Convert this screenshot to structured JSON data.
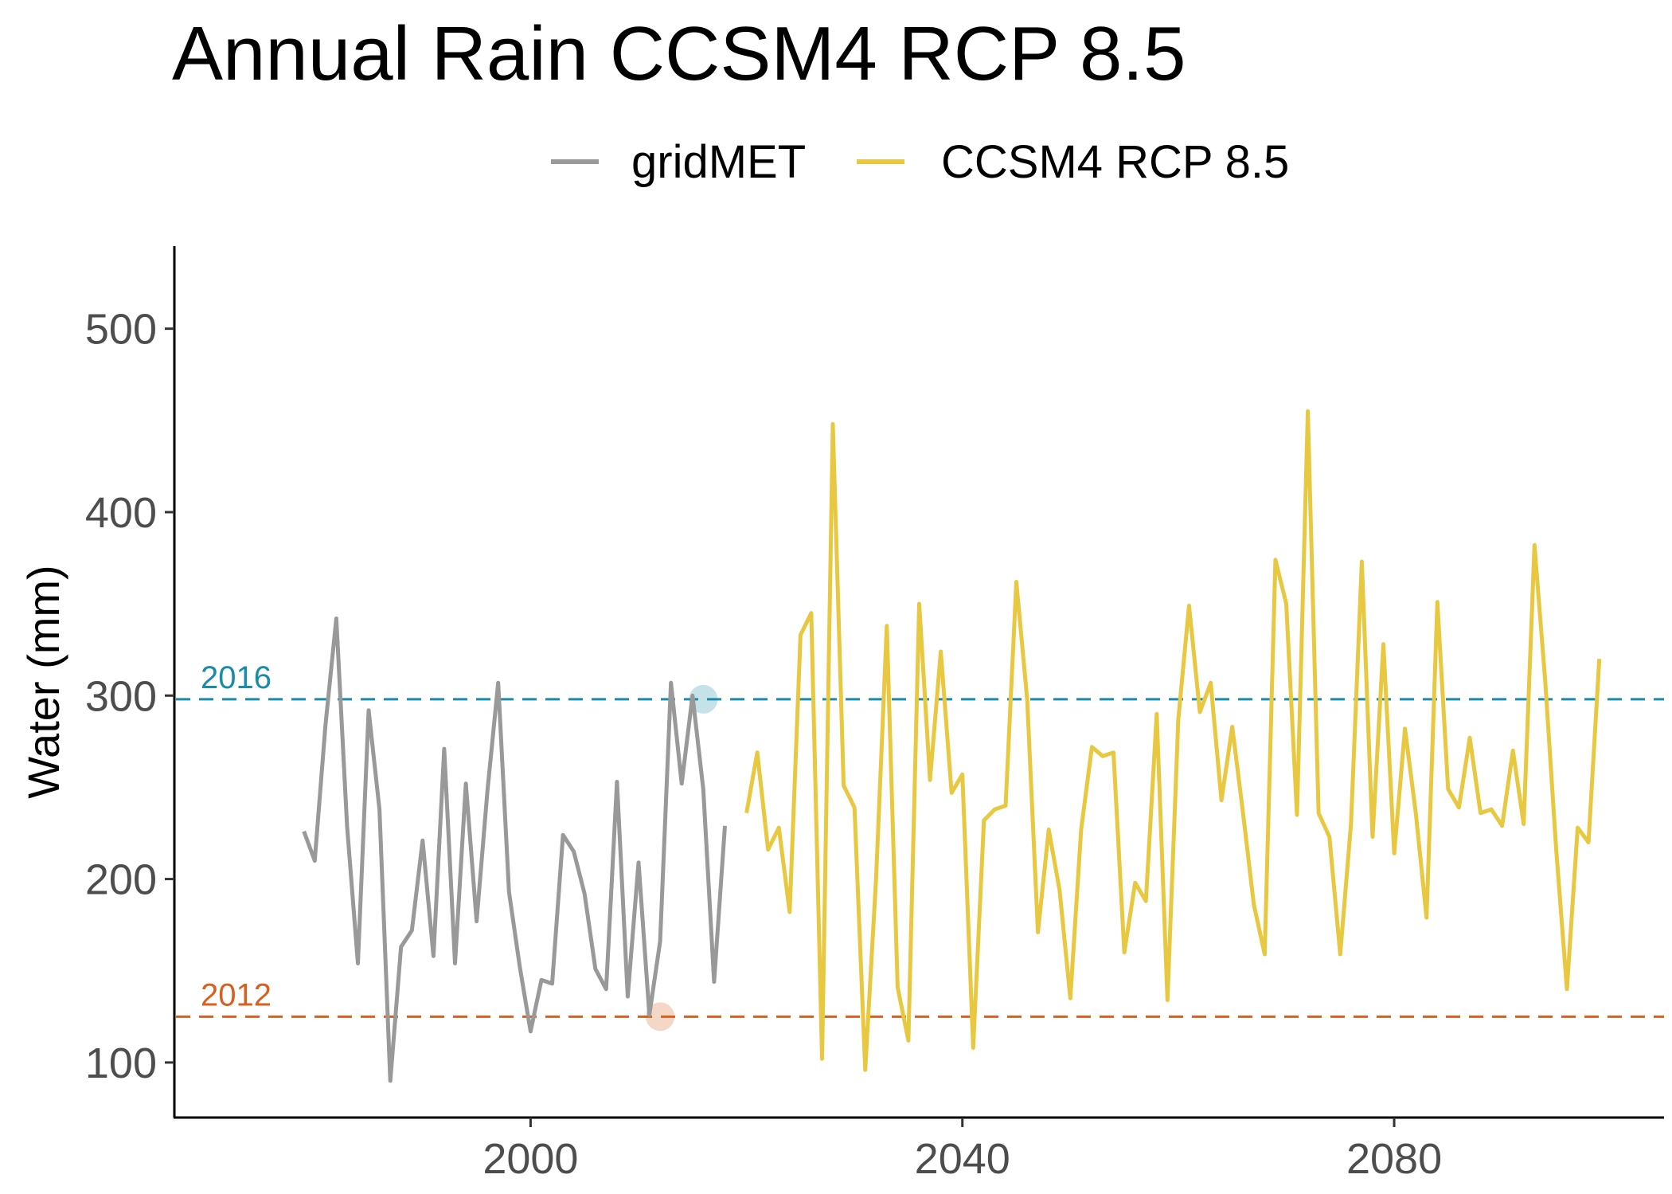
{
  "chart_data": {
    "type": "line",
    "title": "Annual Rain CCSM4 RCP 8.5",
    "xlabel": "",
    "ylabel": "Water (mm)",
    "xlim": [
      1967,
      2105
    ],
    "ylim": [
      70,
      545
    ],
    "x_ticks": [
      2000,
      2040,
      2080
    ],
    "y_ticks": [
      100,
      200,
      300,
      400,
      500
    ],
    "grid": false,
    "legend_position": "top",
    "series": [
      {
        "name": "gridMET",
        "color": "#999999",
        "x": [
          1979,
          1980,
          1981,
          1982,
          1983,
          1984,
          1985,
          1986,
          1987,
          1988,
          1989,
          1990,
          1991,
          1992,
          1993,
          1994,
          1995,
          1996,
          1997,
          1998,
          1999,
          2000,
          2001,
          2002,
          2003,
          2004,
          2005,
          2006,
          2007,
          2008,
          2009,
          2010,
          2011,
          2012,
          2013,
          2014,
          2015,
          2016,
          2017,
          2018,
          2019
        ],
        "y": [
          226,
          210,
          284,
          342,
          229,
          154,
          292,
          238,
          90,
          163,
          172,
          221,
          158,
          271,
          154,
          252,
          177,
          248,
          307,
          193,
          152,
          117,
          145,
          143,
          224,
          215,
          192,
          151,
          140,
          253,
          136,
          209,
          126,
          166,
          307,
          252,
          300,
          249,
          144,
          229,
          null
        ]
      },
      {
        "name": "CCSM4 RCP 8.5",
        "color": "#e8c840",
        "x": [
          2020,
          2021,
          2022,
          2023,
          2024,
          2025,
          2026,
          2027,
          2028,
          2029,
          2030,
          2031,
          2032,
          2033,
          2034,
          2035,
          2036,
          2037,
          2038,
          2039,
          2040,
          2041,
          2042,
          2043,
          2044,
          2045,
          2046,
          2047,
          2048,
          2049,
          2050,
          2051,
          2052,
          2053,
          2054,
          2055,
          2056,
          2057,
          2058,
          2059,
          2060,
          2061,
          2062,
          2063,
          2064,
          2065,
          2066,
          2067,
          2068,
          2069,
          2070,
          2071,
          2072,
          2073,
          2074,
          2075,
          2076,
          2077,
          2078,
          2079,
          2080,
          2081,
          2082,
          2083,
          2084,
          2085,
          2086,
          2087,
          2088,
          2089,
          2090,
          2091,
          2092,
          2093,
          2094,
          2095,
          2096,
          2097,
          2098,
          2099
        ],
        "y": [
          236,
          269,
          216,
          228,
          182,
          333,
          345,
          102,
          448,
          251,
          239,
          96,
          200,
          338,
          141,
          112,
          350,
          254,
          324,
          247,
          257,
          108,
          232,
          238,
          240,
          362,
          298,
          171,
          227,
          194,
          135,
          227,
          272,
          267,
          269,
          160,
          198,
          188,
          290,
          134,
          287,
          349,
          291,
          307,
          243,
          283,
          236,
          186,
          159,
          374,
          350,
          235,
          455,
          236,
          223,
          159,
          230,
          373,
          223,
          328,
          214,
          282,
          236,
          179,
          351,
          249,
          239,
          277,
          236,
          238,
          229,
          270,
          230,
          382,
          307,
          217,
          140,
          228,
          220,
          320
        ]
      }
    ],
    "reference_lines": [
      {
        "label": "2016",
        "y": 298,
        "color": "#1a8ba8",
        "x_point": 2016
      },
      {
        "label": "2012",
        "y": 125,
        "color": "#d95f1e",
        "x_point": 2012
      }
    ]
  }
}
